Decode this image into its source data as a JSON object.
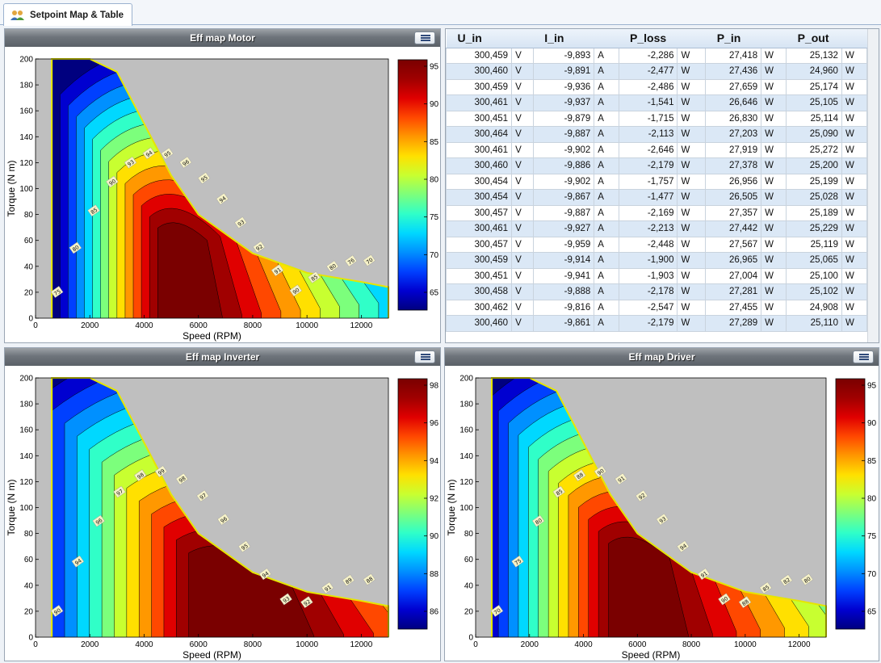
{
  "tab": {
    "label": "Setpoint Map & Table"
  },
  "colors": {
    "title_bar": "#6e747b",
    "row_alt": "#dbe8f6",
    "boundary": "#e6e600"
  },
  "charts": [
    {
      "id": "motor",
      "title": "Eff map Motor",
      "xlabel": "Speed (RPM)",
      "ylabel": "Torque (N m)",
      "xticks": [
        "0",
        "2000",
        "4000",
        "6000",
        "8000",
        "10000",
        "12000"
      ],
      "yticks": [
        "0",
        "20",
        "40",
        "60",
        "80",
        "100",
        "120",
        "140",
        "160",
        "180",
        "200"
      ],
      "colorbar_ticks": [
        "95",
        "90",
        "85",
        "80",
        "75",
        "70",
        "65"
      ],
      "contour_labels": [
        "75",
        "80",
        "85",
        "90",
        "93",
        "94",
        "95",
        "96",
        "95",
        "94",
        "93",
        "92",
        "91",
        "90",
        "85",
        "80",
        "76",
        "70"
      ]
    },
    {
      "id": "inverter",
      "title": "Eff map Inverter",
      "xlabel": "Speed (RPM)",
      "ylabel": "Torque (N m)",
      "xticks": [
        "0",
        "2000",
        "4000",
        "6000",
        "8000",
        "10000",
        "12000"
      ],
      "yticks": [
        "0",
        "20",
        "40",
        "60",
        "80",
        "100",
        "120",
        "140",
        "160",
        "180",
        "200"
      ],
      "colorbar_ticks": [
        "98",
        "96",
        "94",
        "92",
        "90",
        "88",
        "86"
      ],
      "contour_labels": [
        "90",
        "94",
        "96",
        "97",
        "98",
        "99",
        "98",
        "97",
        "96",
        "95",
        "94",
        "93",
        "92",
        "91",
        "89",
        "88"
      ]
    },
    {
      "id": "driver",
      "title": "Eff map Driver",
      "xlabel": "Speed (RPM)",
      "ylabel": "Torque (N m)",
      "xticks": [
        "0",
        "2000",
        "4000",
        "6000",
        "8000",
        "10000",
        "12000"
      ],
      "yticks": [
        "0",
        "20",
        "40",
        "60",
        "80",
        "100",
        "120",
        "140",
        "160",
        "180",
        "200"
      ],
      "colorbar_ticks": [
        "95",
        "90",
        "85",
        "80",
        "75",
        "70",
        "65"
      ],
      "contour_labels": [
        "70",
        "75",
        "80",
        "85",
        "88",
        "90",
        "91",
        "92",
        "93",
        "94",
        "91",
        "90",
        "88",
        "85",
        "82",
        "80"
      ]
    }
  ],
  "table": {
    "headers": [
      "U_in",
      "I_in",
      "P_loss",
      "P_in",
      "P_out"
    ],
    "rows": [
      [
        "300,459",
        "V",
        "-9,893",
        "A",
        "-2,286",
        "W",
        "27,418",
        "W",
        "25,132",
        "W"
      ],
      [
        "300,460",
        "V",
        "-9,891",
        "A",
        "-2,477",
        "W",
        "27,436",
        "W",
        "24,960",
        "W"
      ],
      [
        "300,459",
        "V",
        "-9,936",
        "A",
        "-2,486",
        "W",
        "27,659",
        "W",
        "25,174",
        "W"
      ],
      [
        "300,461",
        "V",
        "-9,937",
        "A",
        "-1,541",
        "W",
        "26,646",
        "W",
        "25,105",
        "W"
      ],
      [
        "300,451",
        "V",
        "-9,879",
        "A",
        "-1,715",
        "W",
        "26,830",
        "W",
        "25,114",
        "W"
      ],
      [
        "300,464",
        "V",
        "-9,887",
        "A",
        "-2,113",
        "W",
        "27,203",
        "W",
        "25,090",
        "W"
      ],
      [
        "300,461",
        "V",
        "-9,902",
        "A",
        "-2,646",
        "W",
        "27,919",
        "W",
        "25,272",
        "W"
      ],
      [
        "300,460",
        "V",
        "-9,886",
        "A",
        "-2,179",
        "W",
        "27,378",
        "W",
        "25,200",
        "W"
      ],
      [
        "300,454",
        "V",
        "-9,902",
        "A",
        "-1,757",
        "W",
        "26,956",
        "W",
        "25,199",
        "W"
      ],
      [
        "300,454",
        "V",
        "-9,867",
        "A",
        "-1,477",
        "W",
        "26,505",
        "W",
        "25,028",
        "W"
      ],
      [
        "300,457",
        "V",
        "-9,887",
        "A",
        "-2,169",
        "W",
        "27,357",
        "W",
        "25,189",
        "W"
      ],
      [
        "300,461",
        "V",
        "-9,927",
        "A",
        "-2,213",
        "W",
        "27,442",
        "W",
        "25,229",
        "W"
      ],
      [
        "300,457",
        "V",
        "-9,959",
        "A",
        "-2,448",
        "W",
        "27,567",
        "W",
        "25,119",
        "W"
      ],
      [
        "300,459",
        "V",
        "-9,914",
        "A",
        "-1,900",
        "W",
        "26,965",
        "W",
        "25,065",
        "W"
      ],
      [
        "300,451",
        "V",
        "-9,941",
        "A",
        "-1,903",
        "W",
        "27,004",
        "W",
        "25,100",
        "W"
      ],
      [
        "300,458",
        "V",
        "-9,888",
        "A",
        "-2,178",
        "W",
        "27,281",
        "W",
        "25,102",
        "W"
      ],
      [
        "300,462",
        "V",
        "-9,816",
        "A",
        "-2,547",
        "W",
        "27,455",
        "W",
        "24,908",
        "W"
      ],
      [
        "300,460",
        "V",
        "-9,861",
        "A",
        "-2,179",
        "W",
        "27,289",
        "W",
        "25,110",
        "W"
      ]
    ]
  }
}
